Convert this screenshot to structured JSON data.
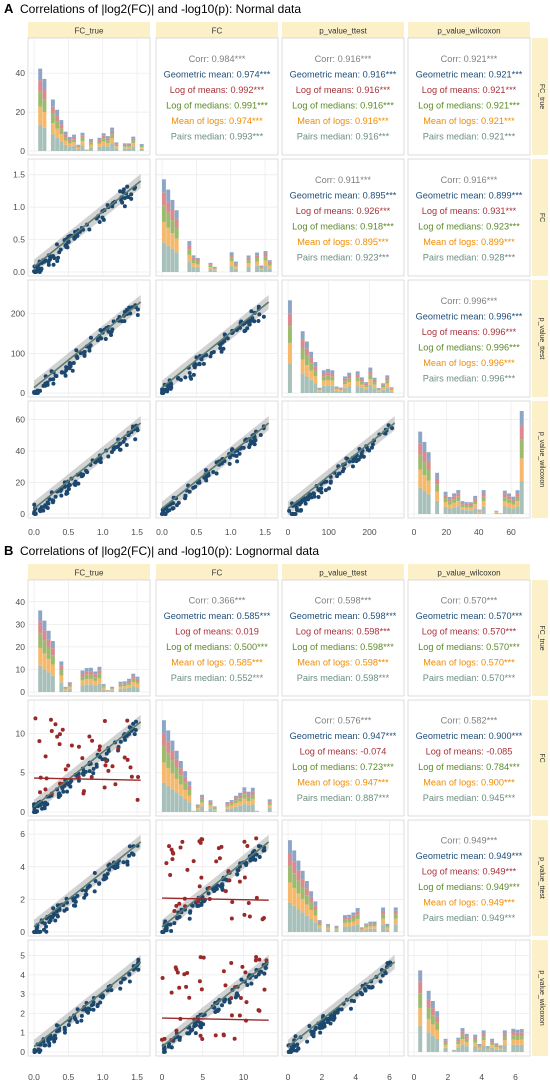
{
  "panel_A": {
    "letter": "A",
    "title": "Correlations of |log2(FC)| and -log10(p): Normal data",
    "columns": [
      "FC_true",
      "FC",
      "p_value_ttest",
      "p_value_wilcoxon"
    ],
    "rows": [
      "FC_true",
      "FC",
      "p_value_ttest",
      "p_value_wilcoxon"
    ]
  },
  "panel_B": {
    "letter": "B",
    "title": "Correlations of |log2(FC)| and -log10(p): Lognormal data",
    "columns": [
      "FC_true",
      "FC",
      "p_value_ttest",
      "p_value_wilcoxon"
    ],
    "rows": [
      "FC_true",
      "FC",
      "p_value_ttest",
      "p_value_wilcoxon"
    ]
  },
  "colors": {
    "strip": "#fbf0c8",
    "panel_bg": "#ffffff",
    "grid": "#ebebeb",
    "border": "#c8c8c8",
    "corr": "#808080",
    "geometric_mean": "#1f4e79",
    "log_of_means": "#a8323a",
    "log_of_medians": "#5c8a28",
    "mean_of_logs": "#f08c00",
    "pairs_median": "#6b8e7f",
    "point_blue": "#1c4870",
    "point_red": "#9a2a2a",
    "point_green": "#5c8a28",
    "band": "#b4b4b4",
    "fit_line": "#5a7b6e",
    "hist": [
      "#a7c0ba",
      "#f6b96b",
      "#9dbb6f",
      "#d98b8f",
      "#8ea6c6"
    ]
  },
  "chart_data": [
    {
      "panel": "A",
      "type": "scatter-matrix",
      "variables": [
        "FC_true",
        "FC",
        "p_value_ttest",
        "p_value_wilcoxon"
      ],
      "diagonal": "stacked histogram",
      "lower": "scatter with linear fit",
      "diagonal_y_axes": {
        "FC_true": {
          "ticks": [
            0,
            20,
            40
          ],
          "ylim": [
            0,
            55
          ]
        },
        "FC": {
          "ticks": [
            0.0,
            0.5,
            1.0,
            1.5
          ],
          "ylim": [
            0,
            1.65
          ]
        },
        "p_value_ttest": {
          "ticks": [
            0,
            100,
            200
          ],
          "ylim": [
            0,
            270
          ]
        },
        "p_value_wilcoxon": {
          "ticks": [
            0,
            20,
            40,
            60
          ],
          "ylim": [
            0,
            68
          ]
        }
      },
      "x_axes": {
        "FC_true": {
          "ticks": [
            0.0,
            0.5,
            1.0,
            1.5
          ],
          "xlim": [
            0,
            1.6
          ]
        },
        "FC": {
          "ticks": [
            0.0,
            0.5,
            1.0,
            1.5
          ],
          "xlim": [
            0,
            1.6
          ]
        },
        "p_value_ttest": {
          "ticks": [
            0,
            100,
            200
          ],
          "xlim": [
            0,
            270
          ]
        },
        "p_value_wilcoxon": {
          "ticks": [
            0,
            20,
            40,
            60
          ],
          "xlim": [
            0,
            68
          ]
        }
      },
      "correlations": [
        {
          "row": "FC_true",
          "col": "FC",
          "lines": [
            {
              "label": "Corr",
              "value": "0.984",
              "sig": "***"
            },
            {
              "label": "Geometric mean",
              "value": "0.974",
              "sig": "***"
            },
            {
              "label": "Log of means",
              "value": "0.992",
              "sig": "***"
            },
            {
              "label": "Log of medians",
              "value": "0.991",
              "sig": "***"
            },
            {
              "label": "Mean of logs",
              "value": "0.974",
              "sig": "***"
            },
            {
              "label": "Pairs median",
              "value": "0.993",
              "sig": "***"
            }
          ]
        },
        {
          "row": "FC_true",
          "col": "p_value_ttest",
          "lines": [
            {
              "label": "Corr",
              "value": "0.916",
              "sig": "***"
            },
            {
              "label": "Geometric mean",
              "value": "0.916",
              "sig": "***"
            },
            {
              "label": "Log of means",
              "value": "0.916",
              "sig": "***"
            },
            {
              "label": "Log of medians",
              "value": "0.916",
              "sig": "***"
            },
            {
              "label": "Mean of logs",
              "value": "0.916",
              "sig": "***"
            },
            {
              "label": "Pairs median",
              "value": "0.916",
              "sig": "***"
            }
          ]
        },
        {
          "row": "FC_true",
          "col": "p_value_wilcoxon",
          "lines": [
            {
              "label": "Corr",
              "value": "0.921",
              "sig": "***"
            },
            {
              "label": "Geometric mean",
              "value": "0.921",
              "sig": "***"
            },
            {
              "label": "Log of means",
              "value": "0.921",
              "sig": "***"
            },
            {
              "label": "Log of medians",
              "value": "0.921",
              "sig": "***"
            },
            {
              "label": "Mean of logs",
              "value": "0.921",
              "sig": "***"
            },
            {
              "label": "Pairs median",
              "value": "0.921",
              "sig": "***"
            }
          ]
        },
        {
          "row": "FC",
          "col": "p_value_ttest",
          "lines": [
            {
              "label": "Corr",
              "value": "0.911",
              "sig": "***"
            },
            {
              "label": "Geometric mean",
              "value": "0.895",
              "sig": "***"
            },
            {
              "label": "Log of means",
              "value": "0.926",
              "sig": "***"
            },
            {
              "label": "Log of medians",
              "value": "0.918",
              "sig": "***"
            },
            {
              "label": "Mean of logs",
              "value": "0.895",
              "sig": "***"
            },
            {
              "label": "Pairs median",
              "value": "0.923",
              "sig": "***"
            }
          ]
        },
        {
          "row": "FC",
          "col": "p_value_wilcoxon",
          "lines": [
            {
              "label": "Corr",
              "value": "0.916",
              "sig": "***"
            },
            {
              "label": "Geometric mean",
              "value": "0.899",
              "sig": "***"
            },
            {
              "label": "Log of means",
              "value": "0.931",
              "sig": "***"
            },
            {
              "label": "Log of medians",
              "value": "0.923",
              "sig": "***"
            },
            {
              "label": "Mean of logs",
              "value": "0.899",
              "sig": "***"
            },
            {
              "label": "Pairs median",
              "value": "0.928",
              "sig": "***"
            }
          ]
        },
        {
          "row": "p_value_ttest",
          "col": "p_value_wilcoxon",
          "lines": [
            {
              "label": "Corr",
              "value": "0.996",
              "sig": "***"
            },
            {
              "label": "Geometric mean",
              "value": "0.996",
              "sig": "***"
            },
            {
              "label": "Log of means",
              "value": "0.996",
              "sig": "***"
            },
            {
              "label": "Log of medians",
              "value": "0.996",
              "sig": "***"
            },
            {
              "label": "Mean of logs",
              "value": "0.996",
              "sig": "***"
            },
            {
              "label": "Pairs median",
              "value": "0.996",
              "sig": "***"
            }
          ]
        }
      ]
    },
    {
      "panel": "B",
      "type": "scatter-matrix",
      "variables": [
        "FC_true",
        "FC",
        "p_value_ttest",
        "p_value_wilcoxon"
      ],
      "diagonal": "stacked histogram",
      "lower": "scatter with linear fit",
      "diagonal_y_axes": {
        "FC_true": {
          "ticks": [
            0,
            10,
            20,
            30,
            40
          ],
          "ylim": [
            0,
            47
          ]
        },
        "FC": {
          "ticks": [
            0,
            5,
            10
          ],
          "ylim": [
            0,
            13.5
          ]
        },
        "p_value_ttest": {
          "ticks": [
            0,
            2,
            4,
            6
          ],
          "ylim": [
            0,
            6.5
          ]
        },
        "p_value_wilcoxon": {
          "ticks": [
            0,
            1,
            2,
            3,
            4,
            5
          ],
          "ylim": [
            0,
            5.5
          ]
        }
      },
      "x_axes": {
        "FC_true": {
          "ticks": [
            0.0,
            0.5,
            1.0,
            1.5
          ],
          "xlim": [
            0,
            1.6
          ]
        },
        "FC": {
          "ticks": [
            0,
            5,
            10
          ],
          "xlim": [
            0,
            13.5
          ]
        },
        "p_value_ttest": {
          "ticks": [
            0,
            2,
            4,
            6
          ],
          "xlim": [
            0,
            6.5
          ]
        },
        "p_value_wilcoxon": {
          "ticks": [
            0,
            2,
            4,
            6
          ],
          "xlim": [
            0,
            6.5
          ]
        }
      },
      "correlations": [
        {
          "row": "FC_true",
          "col": "FC",
          "lines": [
            {
              "label": "Corr",
              "value": "0.366",
              "sig": "***"
            },
            {
              "label": "Geometric mean",
              "value": "0.585",
              "sig": "***"
            },
            {
              "label": "Log of means",
              "value": "0.019",
              "sig": ""
            },
            {
              "label": "Log of medians",
              "value": "0.500",
              "sig": "***"
            },
            {
              "label": "Mean of logs",
              "value": "0.585",
              "sig": "***"
            },
            {
              "label": "Pairs median",
              "value": "0.552",
              "sig": "***"
            }
          ]
        },
        {
          "row": "FC_true",
          "col": "p_value_ttest",
          "lines": [
            {
              "label": "Corr",
              "value": "0.598",
              "sig": "***"
            },
            {
              "label": "Geometric mean",
              "value": "0.598",
              "sig": "***"
            },
            {
              "label": "Log of means",
              "value": "0.598",
              "sig": "***"
            },
            {
              "label": "Log of medians",
              "value": "0.598",
              "sig": "***"
            },
            {
              "label": "Mean of logs",
              "value": "0.598",
              "sig": "***"
            },
            {
              "label": "Pairs median",
              "value": "0.598",
              "sig": "***"
            }
          ]
        },
        {
          "row": "FC_true",
          "col": "p_value_wilcoxon",
          "lines": [
            {
              "label": "Corr",
              "value": "0.570",
              "sig": "***"
            },
            {
              "label": "Geometric mean",
              "value": "0.570",
              "sig": "***"
            },
            {
              "label": "Log of means",
              "value": "0.570",
              "sig": "***"
            },
            {
              "label": "Log of medians",
              "value": "0.570",
              "sig": "***"
            },
            {
              "label": "Mean of logs",
              "value": "0.570",
              "sig": "***"
            },
            {
              "label": "Pairs median",
              "value": "0.570",
              "sig": "***"
            }
          ]
        },
        {
          "row": "FC",
          "col": "p_value_ttest",
          "lines": [
            {
              "label": "Corr",
              "value": "0.576",
              "sig": "***"
            },
            {
              "label": "Geometric mean",
              "value": "0.947",
              "sig": "***"
            },
            {
              "label": "Log of means",
              "value": "-0.074",
              "sig": ""
            },
            {
              "label": "Log of medians",
              "value": "0.723",
              "sig": "***"
            },
            {
              "label": "Mean of logs",
              "value": "0.947",
              "sig": "***"
            },
            {
              "label": "Pairs median",
              "value": "0.887",
              "sig": "***"
            }
          ]
        },
        {
          "row": "FC",
          "col": "p_value_wilcoxon",
          "lines": [
            {
              "label": "Corr",
              "value": "0.582",
              "sig": "***"
            },
            {
              "label": "Geometric mean",
              "value": "0.900",
              "sig": "***"
            },
            {
              "label": "Log of means",
              "value": "-0.085",
              "sig": ""
            },
            {
              "label": "Log of medians",
              "value": "0.784",
              "sig": "***"
            },
            {
              "label": "Mean of logs",
              "value": "0.900",
              "sig": "***"
            },
            {
              "label": "Pairs median",
              "value": "0.945",
              "sig": "***"
            }
          ]
        },
        {
          "row": "p_value_ttest",
          "col": "p_value_wilcoxon",
          "lines": [
            {
              "label": "Corr",
              "value": "0.949",
              "sig": "***"
            },
            {
              "label": "Geometric mean",
              "value": "0.949",
              "sig": "***"
            },
            {
              "label": "Log of means",
              "value": "0.949",
              "sig": "***"
            },
            {
              "label": "Log of medians",
              "value": "0.949",
              "sig": "***"
            },
            {
              "label": "Mean of logs",
              "value": "0.949",
              "sig": "***"
            },
            {
              "label": "Pairs median",
              "value": "0.949",
              "sig": "***"
            }
          ]
        }
      ]
    }
  ]
}
